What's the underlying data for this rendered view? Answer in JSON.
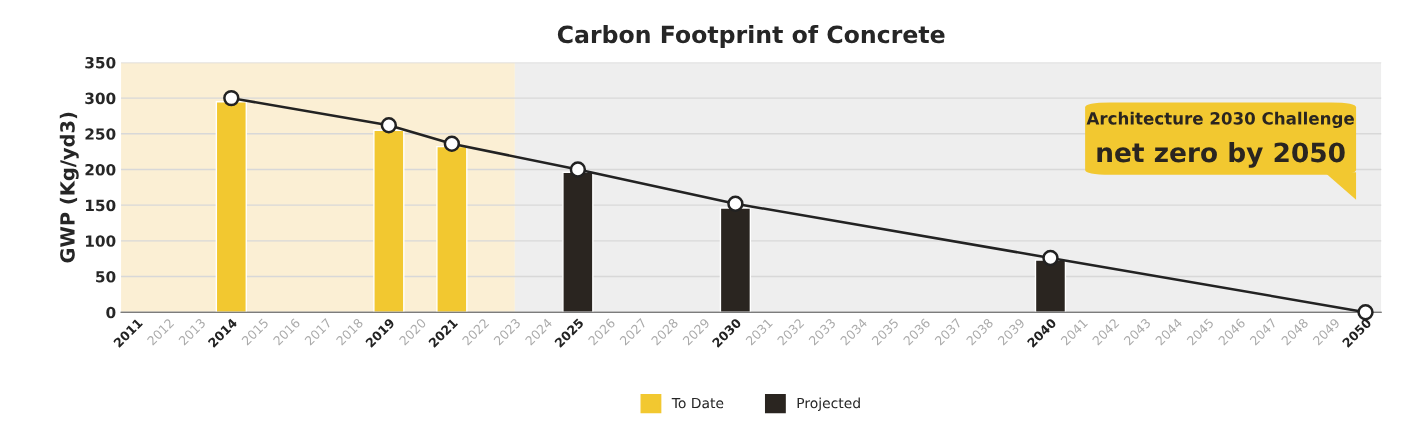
{
  "chart_data": {
    "type": "bar",
    "title": "Carbon Footprint of Concrete",
    "ylabel": "GWP (Kg/yd3)",
    "categories": [
      "2011",
      "2012",
      "2013",
      "2014",
      "2015",
      "2016",
      "2017",
      "2018",
      "2019",
      "2020",
      "2021",
      "2022",
      "2023",
      "2024",
      "2025",
      "2026",
      "2027",
      "2028",
      "2029",
      "2030",
      "2031",
      "2032",
      "2033",
      "2034",
      "2035",
      "2036",
      "2037",
      "2038",
      "2039",
      "2040",
      "2041",
      "2042",
      "2043",
      "2044",
      "2045",
      "2046",
      "2047",
      "2048",
      "2049",
      "2050"
    ],
    "series": [
      {
        "name": "To Date",
        "color": "#f2c830",
        "values": [
          null,
          null,
          null,
          295,
          null,
          null,
          null,
          null,
          255,
          null,
          232,
          null,
          null,
          null,
          null,
          null,
          null,
          null,
          null,
          null,
          null,
          null,
          null,
          null,
          null,
          null,
          null,
          null,
          null,
          null,
          null,
          null,
          null,
          null,
          null,
          null,
          null,
          null,
          null,
          null
        ]
      },
      {
        "name": "Projected",
        "color": "#2a2520",
        "values": [
          null,
          null,
          null,
          null,
          null,
          null,
          null,
          null,
          null,
          null,
          null,
          null,
          null,
          null,
          196,
          null,
          null,
          null,
          null,
          146,
          null,
          null,
          null,
          null,
          null,
          null,
          null,
          null,
          null,
          73,
          null,
          null,
          null,
          null,
          null,
          null,
          null,
          null,
          null,
          null
        ]
      },
      {
        "type": "line",
        "color": "#222222",
        "marker": "circle",
        "values": [
          null,
          null,
          null,
          300,
          null,
          null,
          null,
          null,
          262,
          null,
          236,
          null,
          null,
          null,
          200,
          null,
          null,
          null,
          null,
          152,
          null,
          null,
          null,
          null,
          null,
          null,
          null,
          null,
          null,
          76,
          null,
          null,
          null,
          null,
          null,
          null,
          null,
          null,
          null,
          0
        ]
      }
    ],
    "ylim": [
      0,
      350
    ],
    "yticks": [
      0,
      50,
      100,
      150,
      200,
      250,
      300,
      350
    ],
    "grid": "y",
    "legend": "bottom",
    "bands": [
      {
        "axis": "x",
        "from": "2011",
        "to": "2023",
        "color": "#fbefd4"
      },
      {
        "axis": "x",
        "from": "2023",
        "to": "2050",
        "color": "#eeeeee"
      }
    ],
    "annotations": [
      "Architecture 2030 Challenge",
      "net zero by 2050"
    ]
  }
}
